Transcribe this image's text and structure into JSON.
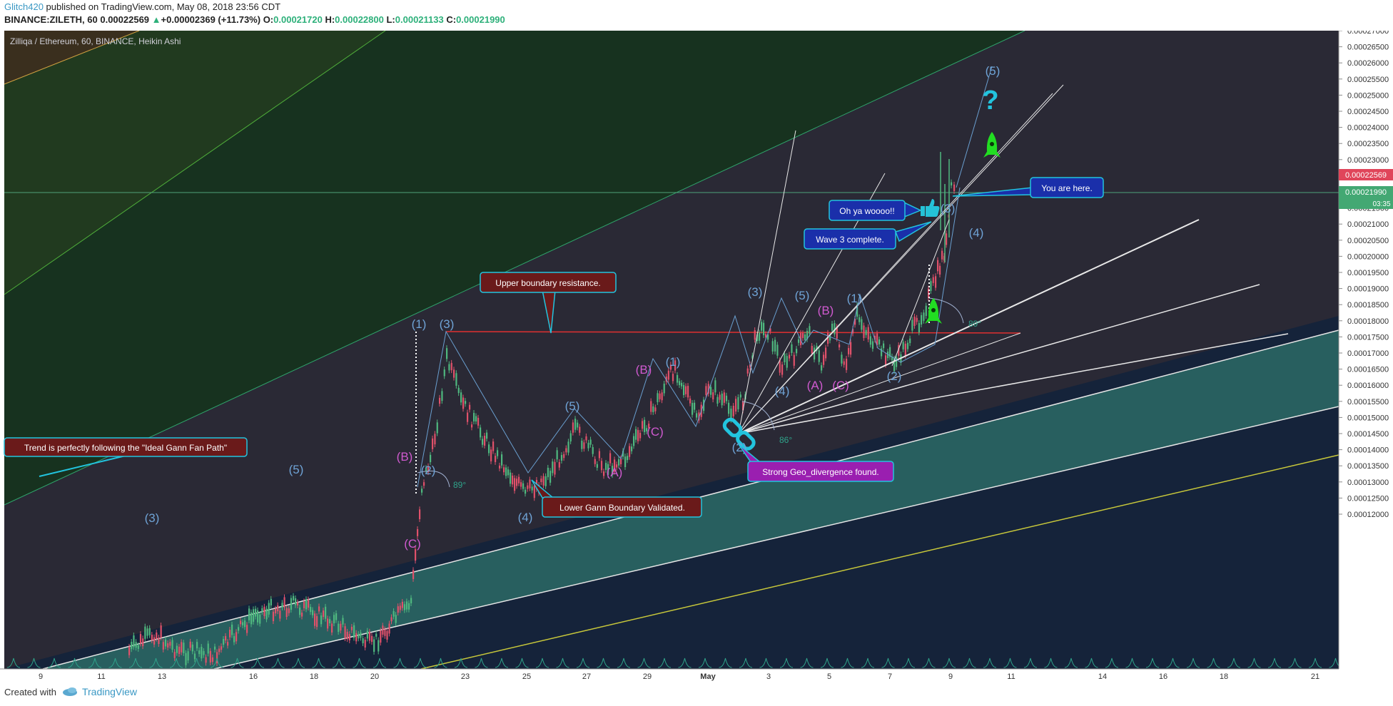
{
  "header": {
    "author": "Glitch420",
    "published_text": " published on TradingView.com, May 08, 2018 23:56 CDT",
    "symbol": "BINANCE:ZILETH, 60",
    "price": "0.00022569",
    "change_arrow": "▲",
    "change": "+0.00002369 (+11.73%)",
    "o_label": "O:",
    "o_value": "0.00021720",
    "h_label": "H:",
    "h_value": "0.00022800",
    "l_label": "L:",
    "l_value": "0.00021133",
    "c_label": "C:",
    "c_value": "0.00021990"
  },
  "chart": {
    "title": "Zilliqa / Ethereum, 60, BINANCE, Heikin Ashi",
    "price_axis": [
      "0.00027000",
      "0.00026500",
      "0.00026000",
      "0.00025500",
      "0.00025000",
      "0.00024500",
      "0.00024000",
      "0.00023500",
      "0.00023000",
      "0.00022500",
      "0.00022000",
      "0.00021500",
      "0.00021000",
      "0.00020500",
      "0.00020000",
      "0.00019500",
      "0.00019000",
      "0.00018500",
      "0.00018000",
      "0.00017500",
      "0.00017000",
      "0.00016500",
      "0.00016000",
      "0.00015500",
      "0.00015000",
      "0.00014500",
      "0.00014000",
      "0.00013500",
      "0.00013000",
      "0.00012500",
      "0.00012000"
    ],
    "current_price_tag": "0.00022569",
    "close_price_tag": "0.00021990",
    "countdown": "03:35",
    "time_axis": [
      {
        "t": "9",
        "bold": false
      },
      {
        "t": "11",
        "bold": false
      },
      {
        "t": "13",
        "bold": false
      },
      {
        "t": "16",
        "bold": false
      },
      {
        "t": "18",
        "bold": false
      },
      {
        "t": "20",
        "bold": false
      },
      {
        "t": "23",
        "bold": false
      },
      {
        "t": "25",
        "bold": false
      },
      {
        "t": "27",
        "bold": false
      },
      {
        "t": "29",
        "bold": false
      },
      {
        "t": "May",
        "bold": true
      },
      {
        "t": "3",
        "bold": false
      },
      {
        "t": "5",
        "bold": false
      },
      {
        "t": "7",
        "bold": false
      },
      {
        "t": "9",
        "bold": false
      },
      {
        "t": "11",
        "bold": false
      },
      {
        "t": "14",
        "bold": false
      },
      {
        "t": "16",
        "bold": false
      },
      {
        "t": "18",
        "bold": false
      },
      {
        "t": "21",
        "bold": false
      }
    ],
    "callouts": {
      "trend": "Trend is perfectly following the \"Ideal Gann Fan Path\"",
      "upper": "Upper boundary resistance.",
      "lower": "Lower Gann Boundary Validated.",
      "geo": "Strong Geo_divergence found.",
      "ohya": "Oh ya woooo!!",
      "wave3": "Wave 3 complete.",
      "here": "You are here."
    },
    "wave_labels": {
      "w3a": "(3)",
      "w5a": "(5)",
      "wCa": "(C)",
      "wBa": "(B)",
      "w2a": "(2)",
      "w1a": "(1)",
      "w3b": "(3)",
      "w4a": "(4)",
      "w5b": "(5)",
      "wAa": "(A)",
      "wCb": "(C)",
      "wBb": "(B)",
      "w1b": "(1)",
      "w2b": "(2)",
      "w3c": "(3)",
      "w4b": "(4)",
      "w5c": "(5)",
      "wAb": "(A)",
      "wCc": "(C)",
      "wBc": "(B)",
      "w1c": "(1)",
      "w2c": "(2)",
      "w3d": "(3)",
      "w4c": "(4)",
      "w5d": "(5)"
    },
    "angles": {
      "a89a": "89°",
      "a86": "86°",
      "a89b": "89°"
    },
    "question": "?"
  },
  "footer": {
    "created_with": "Created with",
    "brand": "TradingView"
  }
}
